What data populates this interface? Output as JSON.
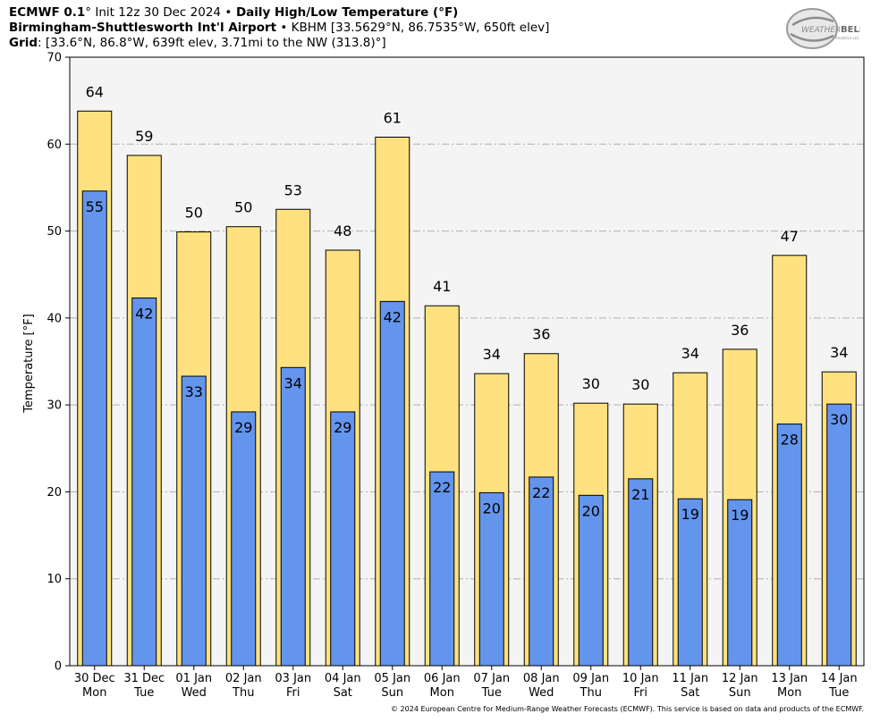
{
  "header": {
    "line1_model": "ECMWF 0.1",
    "line1_deg": "°",
    "line1_init": " Init 12z 30 Dec 2024 ",
    "line1_bullet": "•",
    "line1_product": " Daily High/Low Temperature (°F)",
    "line2_station": "Birmingham-Shuttlesworth Int'l Airport",
    "line2_rest": " • KBHM [33.5629°N, 86.7535°W, 650ft elev]",
    "line3_label": "Grid",
    "line3_rest": ": [33.6°N, 86.8°W, 639ft elev, 3.71mi to the NW (313.8)°]"
  },
  "logo": {
    "text_main": "WEATHER",
    "text_accent": "BELL",
    "text_sub": "Analytics LLC"
  },
  "footer": "© 2024 European Centre for Medium-Range Weather Forecasts (ECMWF). This service is based on data and products of the ECMWF.",
  "colors": {
    "high": "#FFE27F",
    "low": "#6495ED",
    "plot_bg": "#F4F4F4",
    "grid": "#B0B0B0"
  },
  "chart_data": {
    "type": "bar",
    "ylabel": "Temperature [°F]",
    "ylim": [
      0,
      70
    ],
    "yticks": [
      0,
      10,
      20,
      30,
      40,
      50,
      60,
      70
    ],
    "grid": true,
    "categories_date": [
      "30 Dec",
      "31 Dec",
      "01 Jan",
      "02 Jan",
      "03 Jan",
      "04 Jan",
      "05 Jan",
      "06 Jan",
      "07 Jan",
      "08 Jan",
      "09 Jan",
      "10 Jan",
      "11 Jan",
      "12 Jan",
      "13 Jan",
      "14 Jan"
    ],
    "categories_day": [
      "Mon",
      "Tue",
      "Wed",
      "Thu",
      "Fri",
      "Sat",
      "Sun",
      "Mon",
      "Tue",
      "Wed",
      "Thu",
      "Fri",
      "Sat",
      "Sun",
      "Mon",
      "Tue"
    ],
    "series": [
      {
        "key": "high",
        "values": [
          63.8,
          58.7,
          49.9,
          50.5,
          52.5,
          47.8,
          60.8,
          41.4,
          33.6,
          35.9,
          30.2,
          30.1,
          33.7,
          36.4,
          47.2,
          33.8
        ],
        "labels": [
          64,
          59,
          50,
          50,
          53,
          48,
          61,
          41,
          34,
          36,
          30,
          30,
          34,
          36,
          47,
          34
        ]
      },
      {
        "key": "low",
        "values": [
          54.6,
          42.3,
          33.3,
          29.2,
          34.3,
          29.2,
          41.9,
          22.3,
          19.9,
          21.7,
          19.6,
          21.5,
          19.2,
          19.1,
          27.8,
          30.1
        ],
        "labels": [
          55,
          42,
          33,
          29,
          34,
          29,
          42,
          22,
          20,
          22,
          20,
          21,
          19,
          19,
          28,
          30
        ]
      }
    ]
  }
}
